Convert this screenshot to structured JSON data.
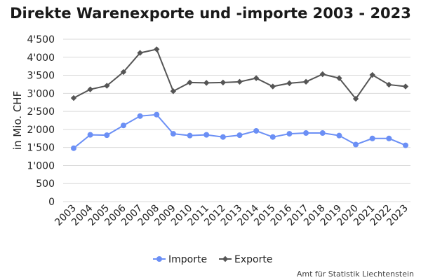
{
  "chart_data": {
    "type": "line",
    "title": "Direkte Warenexporte und -importe 2003 - 2023",
    "ylabel": "in Mio. CHF",
    "xlabel": "",
    "ylim": [
      0,
      4500
    ],
    "yticks": [
      0,
      500,
      1000,
      1500,
      2000,
      2500,
      3000,
      3500,
      4000,
      4500
    ],
    "ytick_labels": [
      "0",
      "500",
      "1'000",
      "1'500",
      "2'000",
      "2'500",
      "3'000",
      "3'500",
      "4'000",
      "4'500"
    ],
    "categories": [
      "2003",
      "2004",
      "2005",
      "2006",
      "2007",
      "2008",
      "2009",
      "2010",
      "2011",
      "2012",
      "2013",
      "2014",
      "2015",
      "2016",
      "2017",
      "2018",
      "2019",
      "2020",
      "2021",
      "2022",
      "2023"
    ],
    "grid": true,
    "legend_position": "bottom-center",
    "series": [
      {
        "name": "Importe",
        "color": "#6b8ff5",
        "marker": "circle",
        "values": [
          1480,
          1850,
          1840,
          2110,
          2370,
          2410,
          1880,
          1830,
          1850,
          1790,
          1840,
          1960,
          1790,
          1880,
          1900,
          1900,
          1830,
          1580,
          1750,
          1750,
          1560
        ]
      },
      {
        "name": "Exporte",
        "color": "#555555",
        "marker": "diamond",
        "values": [
          2870,
          3110,
          3210,
          3590,
          4120,
          4220,
          3060,
          3300,
          3290,
          3300,
          3320,
          3420,
          3190,
          3280,
          3320,
          3530,
          3420,
          2850,
          3510,
          3240,
          3190
        ]
      }
    ],
    "source": "Amt für Statistik Liechtenstein"
  }
}
